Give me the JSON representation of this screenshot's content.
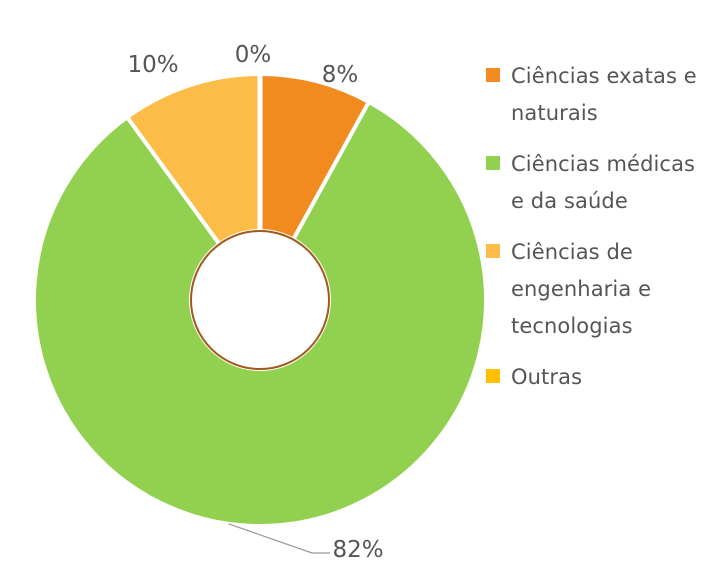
{
  "chart_data": {
    "type": "pie",
    "donut": true,
    "categories": [
      "Ciências exatas e naturais",
      "Ciências médicas e da saúde",
      "Ciências de engenharia e tecnologias",
      "Outras"
    ],
    "values": [
      8,
      82,
      10,
      0
    ],
    "data_labels": [
      "8%",
      "82%",
      "10%",
      "0%"
    ],
    "colors": [
      "#f18a1f",
      "#92d050",
      "#fbbd48",
      "#ffc000"
    ],
    "hole_border_color": "#a0581c",
    "legend_position": "right",
    "title": "",
    "xlabel": "",
    "ylabel": ""
  }
}
